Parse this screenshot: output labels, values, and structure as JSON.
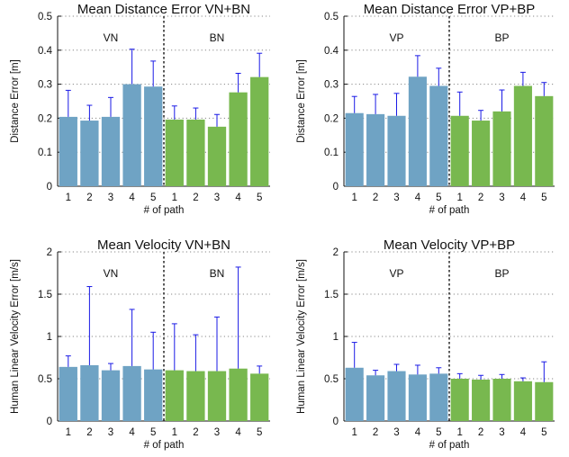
{
  "colors": {
    "group_a": "#6fa3c4",
    "group_b": "#78b84f",
    "error_bar": "#1a1ae6",
    "grid": "#888888"
  },
  "chart_data": [
    {
      "type": "bar",
      "title": "Mean Distance Error VN+BN",
      "ylabel": "Distance Error [m]",
      "xlabel": "# of path",
      "categories": [
        "1",
        "2",
        "3",
        "4",
        "5",
        "1",
        "2",
        "3",
        "4",
        "5"
      ],
      "groups": [
        "VN",
        "BN"
      ],
      "values": [
        0.204,
        0.193,
        0.204,
        0.3,
        0.293,
        0.196,
        0.196,
        0.175,
        0.276,
        0.321
      ],
      "errors": [
        0.078,
        0.045,
        0.057,
        0.103,
        0.075,
        0.04,
        0.034,
        0.036,
        0.056,
        0.07
      ],
      "ylim": [
        0,
        0.5
      ],
      "yticks": [
        "0",
        "0.1",
        "0.2",
        "0.3",
        "0.4",
        "0.5"
      ],
      "grid": "dotted horizontal"
    },
    {
      "type": "bar",
      "title": "Mean Distance Error VP+BP",
      "ylabel": "Distance Error [m]",
      "xlabel": "# of path",
      "categories": [
        "1",
        "2",
        "3",
        "4",
        "5",
        "1",
        "2",
        "3",
        "4",
        "5"
      ],
      "groups": [
        "VP",
        "BP"
      ],
      "values": [
        0.215,
        0.212,
        0.207,
        0.322,
        0.295,
        0.207,
        0.193,
        0.22,
        0.295,
        0.265
      ],
      "errors": [
        0.049,
        0.058,
        0.066,
        0.062,
        0.052,
        0.07,
        0.03,
        0.063,
        0.04,
        0.04
      ],
      "ylim": [
        0,
        0.5
      ],
      "yticks": [
        "0",
        "0.1",
        "0.2",
        "0.3",
        "0.4",
        "0.5"
      ],
      "grid": "dotted horizontal"
    },
    {
      "type": "bar",
      "title": "Mean Velocity VN+BN",
      "ylabel": "Human Linear Velocity Error [m/s]",
      "xlabel": "# of path",
      "categories": [
        "1",
        "2",
        "3",
        "4",
        "5",
        "1",
        "2",
        "3",
        "4",
        "5"
      ],
      "groups": [
        "VN",
        "BN"
      ],
      "values": [
        0.64,
        0.66,
        0.6,
        0.65,
        0.61,
        0.6,
        0.59,
        0.59,
        0.62,
        0.56
      ],
      "errors": [
        0.13,
        0.93,
        0.08,
        0.67,
        0.44,
        0.55,
        0.43,
        0.64,
        1.2,
        0.09
      ],
      "ylim": [
        0,
        2
      ],
      "yticks": [
        "0",
        "0.5",
        "1",
        "1.5",
        "2"
      ],
      "grid": "dotted horizontal"
    },
    {
      "type": "bar",
      "title": "Mean Velocity VP+BP",
      "ylabel": "Human Linear Velocity Error [m/s]",
      "xlabel": "# of path",
      "categories": [
        "1",
        "2",
        "3",
        "4",
        "5",
        "1",
        "2",
        "3",
        "4",
        "5"
      ],
      "groups": [
        "VP",
        "BP"
      ],
      "values": [
        0.63,
        0.54,
        0.59,
        0.55,
        0.56,
        0.5,
        0.49,
        0.5,
        0.47,
        0.46
      ],
      "errors": [
        0.3,
        0.06,
        0.08,
        0.11,
        0.07,
        0.06,
        0.05,
        0.05,
        0.04,
        0.24
      ],
      "ylim": [
        0,
        2
      ],
      "yticks": [
        "0",
        "0.5",
        "1",
        "1.5",
        "2"
      ],
      "grid": "dotted horizontal"
    }
  ]
}
